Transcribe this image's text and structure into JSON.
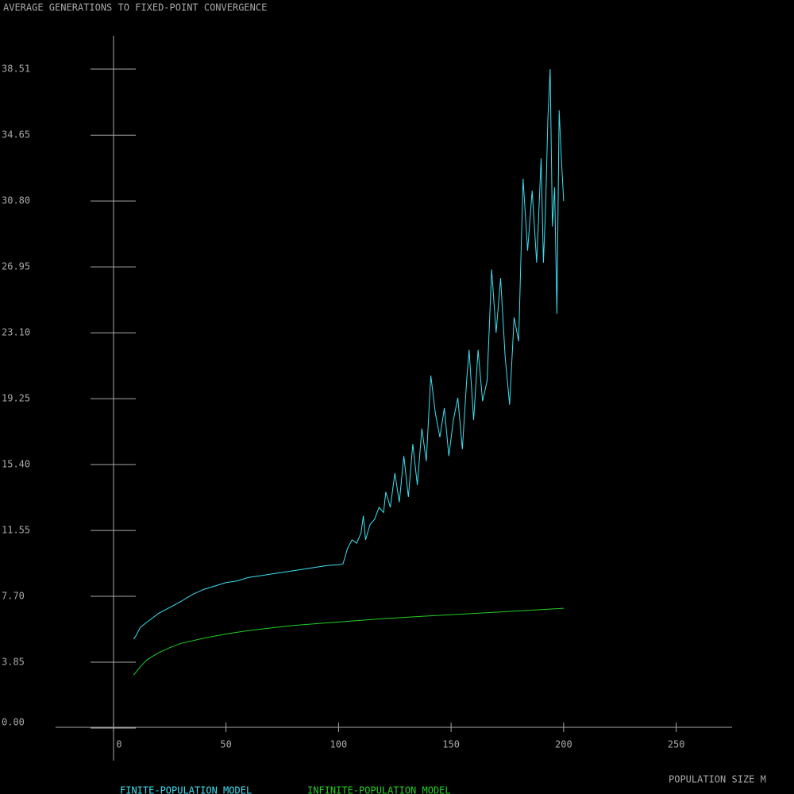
{
  "chart_data": {
    "type": "line",
    "title": "AVERAGE GENERATIONS TO FIXED-POINT CONVERGENCE",
    "x_label": "POPULATION SIZE M",
    "xlim": [
      -25,
      275
    ],
    "xticks": [
      0,
      50,
      100,
      150,
      200,
      250
    ],
    "ylim": [
      0,
      38.51
    ],
    "yticks": [
      {
        "value": 0,
        "label": "0.00"
      },
      3.85,
      {
        "value": 7.7,
        "label": "7.70"
      },
      11.55,
      {
        "value": 15.4,
        "label": "15.40"
      },
      19.25,
      {
        "value": 23.1,
        "label": "23.10"
      },
      26.95,
      {
        "value": 30.8,
        "label": "30.80"
      },
      34.65,
      38.51
    ],
    "series": [
      {
        "name": "FINITE-POPULATION MODEL",
        "color": "#3de0f0",
        "x": [
          9,
          10,
          12,
          15,
          20,
          25,
          30,
          35,
          40,
          45,
          50,
          55,
          60,
          65,
          70,
          75,
          80,
          85,
          90,
          95,
          100,
          102,
          104,
          106,
          108,
          110,
          111,
          112,
          114,
          116,
          118,
          120,
          121,
          123,
          125,
          127,
          129,
          131,
          133,
          135,
          137,
          139,
          141,
          143,
          145,
          147,
          149,
          151,
          153,
          155,
          157,
          158,
          160,
          162,
          164,
          166,
          168,
          170,
          172,
          174,
          176,
          178,
          180,
          182,
          184,
          186,
          188,
          190,
          191,
          192,
          193,
          194,
          195,
          196,
          197,
          198,
          199,
          200
        ],
        "values": [
          5.2,
          5.4,
          5.9,
          6.2,
          6.7,
          7.05,
          7.4,
          7.8,
          8.1,
          8.3,
          8.5,
          8.6,
          8.8,
          8.9,
          9.0,
          9.1,
          9.2,
          9.3,
          9.4,
          9.5,
          9.55,
          9.6,
          10.5,
          11.0,
          10.8,
          11.4,
          12.4,
          11.0,
          11.9,
          12.2,
          12.9,
          12.6,
          13.8,
          12.9,
          14.9,
          13.2,
          15.9,
          13.5,
          16.6,
          14.2,
          17.5,
          15.6,
          20.6,
          18.4,
          17.0,
          18.7,
          15.9,
          18.0,
          19.3,
          16.3,
          20.5,
          22.1,
          18.0,
          22.1,
          19.1,
          20.3,
          26.8,
          23.1,
          26.3,
          21.7,
          18.9,
          24.0,
          22.6,
          32.1,
          27.9,
          31.4,
          27.2,
          33.3,
          27.2,
          30.5,
          35.6,
          38.51,
          29.3,
          31.6,
          24.2,
          36.1,
          33.3,
          30.8
        ]
      },
      {
        "name": "INFINITE-POPULATION MODEL",
        "color": "#22d022",
        "x": [
          9,
          12,
          15,
          20,
          25,
          30,
          40,
          50,
          60,
          70,
          80,
          90,
          100,
          120,
          140,
          160,
          180,
          200
        ],
        "values": [
          3.1,
          3.6,
          4.0,
          4.4,
          4.7,
          4.95,
          5.25,
          5.5,
          5.7,
          5.85,
          6.0,
          6.1,
          6.2,
          6.4,
          6.55,
          6.7,
          6.85,
          7.0
        ]
      }
    ]
  }
}
